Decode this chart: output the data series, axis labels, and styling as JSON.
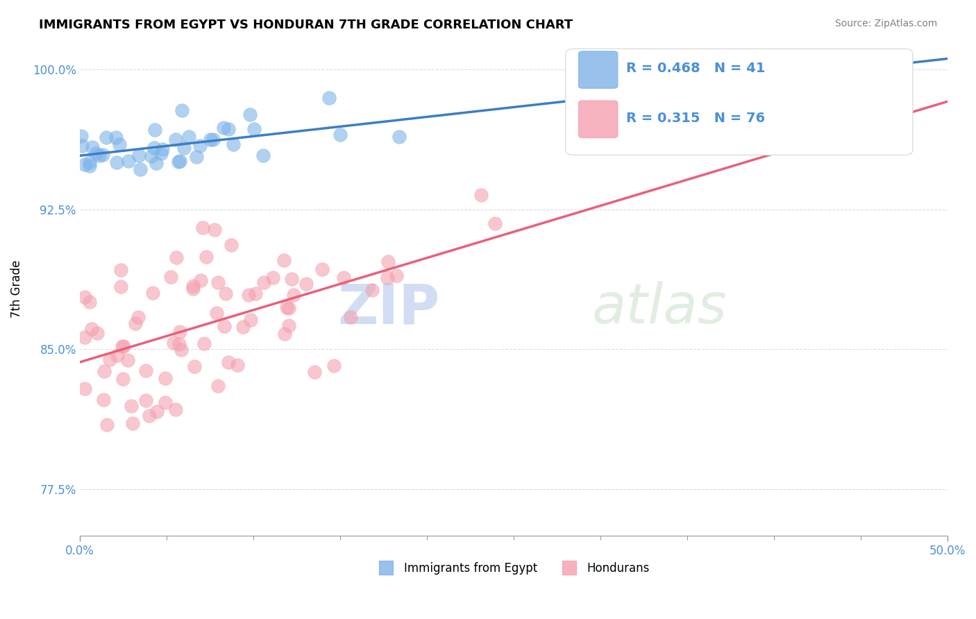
{
  "title": "IMMIGRANTS FROM EGYPT VS HONDURAN 7TH GRADE CORRELATION CHART",
  "source": "Source: ZipAtlas.com",
  "ylabel": "7th Grade",
  "xlim": [
    0.0,
    0.5
  ],
  "ylim": [
    0.75,
    1.015
  ],
  "yticks": [
    0.775,
    0.85,
    0.925,
    1.0
  ],
  "ytick_labels": [
    "77.5%",
    "85.0%",
    "92.5%",
    "100.0%"
  ],
  "xtick_labels": [
    "0.0%",
    "50.0%"
  ],
  "blue_color": "#7EB3E8",
  "pink_color": "#F4A0B0",
  "blue_line_color": "#3A7EC6",
  "pink_line_color": "#E8607A",
  "label_color": "#4A90D9",
  "R_blue": 0.468,
  "N_blue": 41,
  "R_pink": 0.315,
  "N_pink": 76,
  "watermark_ZIP": "ZIP",
  "watermark_atlas": "atlas",
  "background_color": "#FFFFFF",
  "grid_color": "#CCCCCC",
  "tick_label_color": "#4A90D9",
  "legend_bottom_labels": [
    "Immigrants from Egypt",
    "Hondurans"
  ]
}
